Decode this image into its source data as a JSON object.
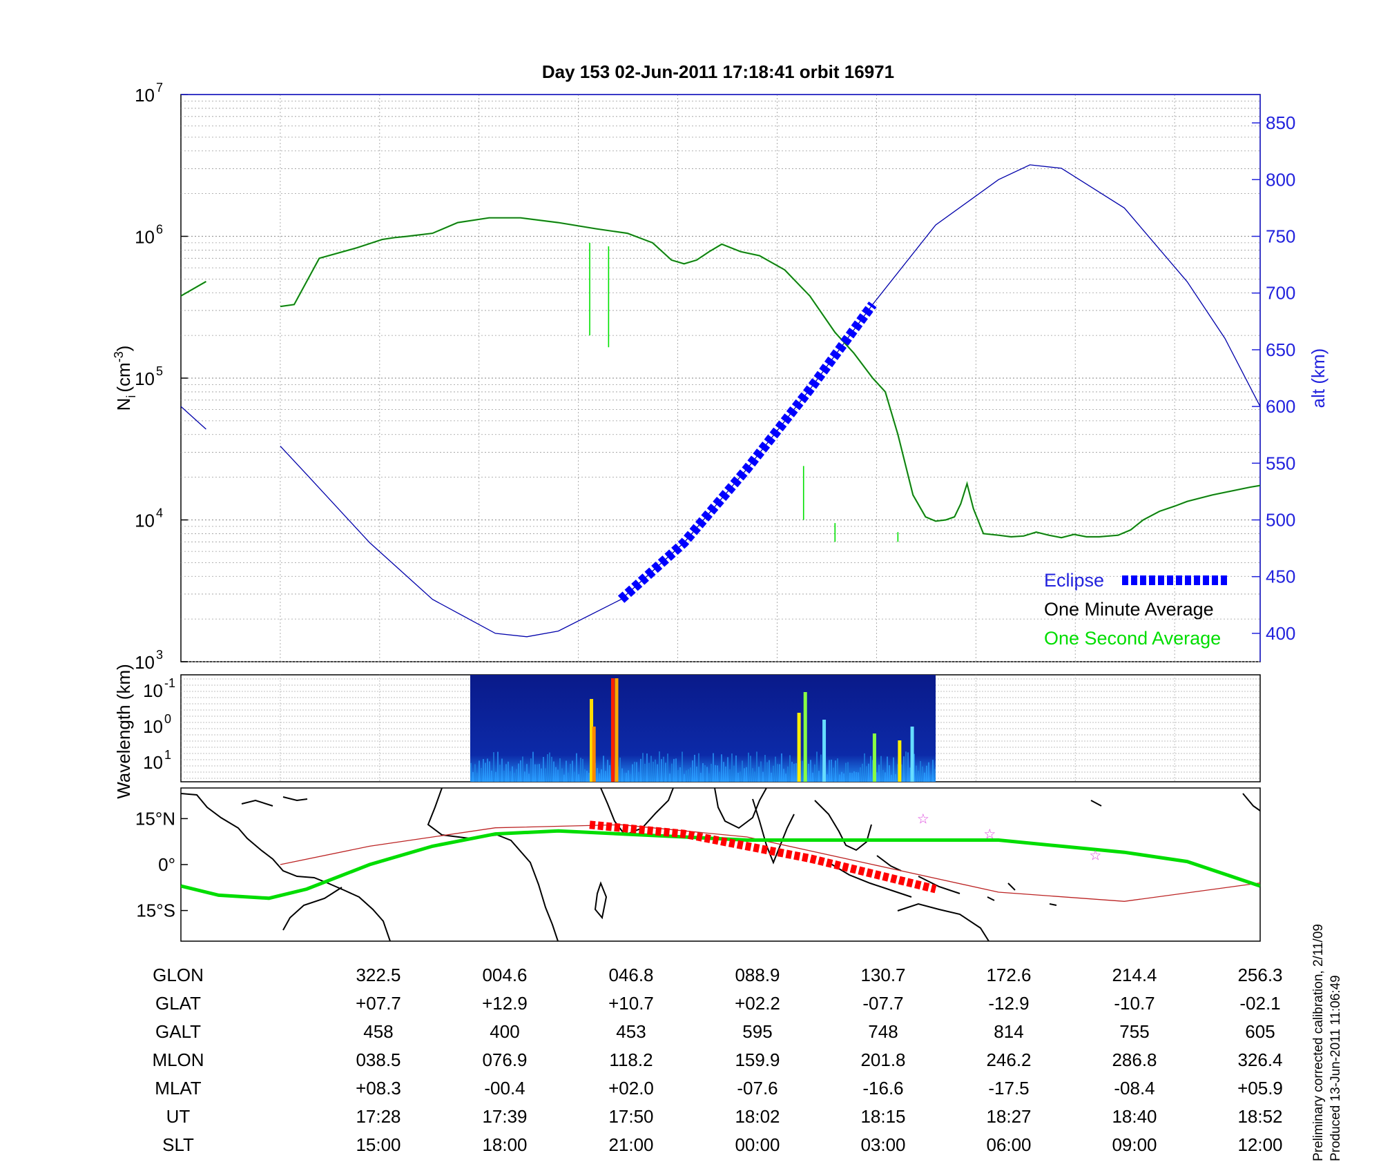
{
  "title": "Day 153  02-Jun-2011 17:18:41   orbit 16971",
  "footer": {
    "line1": "Preliminary corrected calibration, 2/11/09",
    "line2": "Produced 13-Jun-2011 11:06:49"
  },
  "colors": {
    "eclipse": "#0000ff",
    "one_minute": "#1f5f1f",
    "one_second": "#00e000",
    "altitude": "#0000aa",
    "orbit_track": "#00dd00",
    "eclipse_track": "#ff0000",
    "sun_track": "#bb2222",
    "star": "#dd44dd"
  },
  "chart_data": [
    {
      "type": "line",
      "name": "density",
      "ylabel": "N",
      "ylabel_sub": "i",
      "ylabel_unit": "(cm",
      "ylabel_sup": "-3",
      "ylabel_close": ")",
      "yscale": "log",
      "ylim": [
        1000,
        10000000
      ],
      "yticks": [
        {
          "base": "10",
          "exp": "3"
        },
        {
          "base": "10",
          "exp": "4"
        },
        {
          "base": "10",
          "exp": "5"
        },
        {
          "base": "10",
          "exp": "6"
        },
        {
          "base": "10",
          "exp": "7"
        }
      ],
      "y2label": "alt (km)",
      "y2lim": [
        375,
        875
      ],
      "y2ticks": [
        "400",
        "450",
        "500",
        "550",
        "600",
        "650",
        "700",
        "750",
        "800",
        "850"
      ],
      "xlim": [
        0,
        8.58
      ],
      "grid": true,
      "legend_position": "bottom-right",
      "legend": {
        "eclipse": "Eclipse",
        "one_minute": "One Minute Average",
        "one_second": "One Second Average"
      },
      "series": [
        {
          "key": "one_minute",
          "segments": [
            [
              [
                0,
                380000
              ],
              [
                0.2,
                480000
              ]
            ],
            [
              [
                0.79,
                320000
              ],
              [
                0.9,
                330000
              ],
              [
                1.1,
                700000
              ],
              [
                1.4,
                830000
              ],
              [
                1.6,
                950000
              ],
              [
                1.7,
                980000
              ],
              [
                1.8,
                1000000
              ],
              [
                2.0,
                1050000
              ],
              [
                2.2,
                1250000
              ],
              [
                2.45,
                1350000
              ],
              [
                2.7,
                1350000
              ],
              [
                3.0,
                1250000
              ],
              [
                3.3,
                1130000
              ],
              [
                3.55,
                1050000
              ],
              [
                3.75,
                900000
              ],
              [
                3.9,
                680000
              ],
              [
                4.0,
                640000
              ],
              [
                4.1,
                680000
              ],
              [
                4.2,
                780000
              ],
              [
                4.3,
                880000
              ],
              [
                4.45,
                780000
              ],
              [
                4.6,
                730000
              ],
              [
                4.8,
                580000
              ],
              [
                5.0,
                380000
              ],
              [
                5.2,
                210000
              ],
              [
                5.35,
                150000
              ],
              [
                5.5,
                100000
              ],
              [
                5.6,
                80000
              ],
              [
                5.7,
                40000
              ],
              [
                5.82,
                15000
              ],
              [
                5.92,
                10500
              ],
              [
                6.0,
                9800
              ],
              [
                6.08,
                10000
              ],
              [
                6.15,
                10500
              ],
              [
                6.2,
                13000
              ],
              [
                6.25,
                18000
              ],
              [
                6.3,
                12000
              ],
              [
                6.38,
                8000
              ],
              [
                6.5,
                7800
              ],
              [
                6.6,
                7600
              ],
              [
                6.7,
                7700
              ],
              [
                6.8,
                8200
              ],
              [
                6.9,
                7800
              ],
              [
                7.0,
                7500
              ],
              [
                7.1,
                7900
              ],
              [
                7.2,
                7600
              ],
              [
                7.3,
                7600
              ],
              [
                7.45,
                7800
              ],
              [
                7.55,
                8500
              ],
              [
                7.65,
                10000
              ],
              [
                7.78,
                11500
              ],
              [
                7.9,
                12500
              ],
              [
                8.0,
                13500
              ],
              [
                8.2,
                15000
              ],
              [
                8.5,
                17000
              ],
              [
                8.58,
                17500
              ]
            ]
          ]
        },
        {
          "key": "one_second",
          "spikes": [
            {
              "x": 3.25,
              "top": 900000,
              "bottom": 200000
            },
            {
              "x": 3.4,
              "top": 850000,
              "bottom": 165000
            },
            {
              "x": 4.95,
              "top": 24000,
              "bottom": 10000
            },
            {
              "x": 5.2,
              "top": 9500,
              "bottom": 7000
            },
            {
              "x": 5.7,
              "top": 8200,
              "bottom": 7000
            }
          ]
        },
        {
          "key": "eclipse",
          "from_x": 3.25,
          "to_x": 5.98
        },
        {
          "key": "altitude",
          "points": [
            [
              0,
              600
            ],
            [
              0.2,
              580
            ],
            [
              0.79,
              565
            ],
            [
              1.0,
              540
            ],
            [
              1.5,
              480
            ],
            [
              2.0,
              430
            ],
            [
              2.5,
              400
            ],
            [
              2.75,
              397
            ],
            [
              3.0,
              402
            ],
            [
              3.5,
              430
            ],
            [
              4.0,
              480
            ],
            [
              4.5,
              545
            ],
            [
              5.0,
              615
            ],
            [
              5.5,
              690
            ],
            [
              6.0,
              760
            ],
            [
              6.5,
              800
            ],
            [
              6.75,
              813
            ],
            [
              7.0,
              810
            ],
            [
              7.5,
              775
            ],
            [
              8.0,
              710
            ],
            [
              8.3,
              660
            ],
            [
              8.58,
              600
            ]
          ]
        }
      ]
    },
    {
      "type": "heatmap",
      "name": "spectrogram",
      "ylabel": "Wavelength (km)",
      "yticks": [
        {
          "base": "10",
          "exp": "-1"
        },
        {
          "base": "10",
          "exp": "0"
        },
        {
          "base": "10",
          "exp": "1"
        }
      ],
      "data_range_x": [
        2.3,
        6.0
      ]
    },
    {
      "type": "map",
      "name": "ground-track",
      "yticks": [
        "15°N",
        "0°",
        "15°S"
      ],
      "ylim": [
        -25,
        25
      ],
      "orbit_track": [
        [
          0,
          -7
        ],
        [
          0.3,
          -10
        ],
        [
          0.7,
          -11
        ],
        [
          1.0,
          -8
        ],
        [
          1.5,
          0
        ],
        [
          2.0,
          6
        ],
        [
          2.5,
          10
        ],
        [
          3.0,
          11
        ],
        [
          3.5,
          10
        ],
        [
          4.0,
          9
        ],
        [
          4.5,
          8
        ],
        [
          5.0,
          8
        ],
        [
          5.5,
          8
        ],
        [
          6.0,
          8
        ],
        [
          6.5,
          8
        ],
        [
          7.0,
          6
        ],
        [
          7.5,
          4
        ],
        [
          8.0,
          1
        ],
        [
          8.58,
          -7
        ]
      ],
      "sun_track": [
        [
          0.79,
          0
        ],
        [
          1.5,
          6
        ],
        [
          2.5,
          12
        ],
        [
          3.5,
          13
        ],
        [
          4.5,
          9
        ],
        [
          5.5,
          0
        ],
        [
          6.5,
          -9
        ],
        [
          7.5,
          -12
        ],
        [
          8.58,
          -6
        ]
      ],
      "eclipse_track": [
        [
          3.25,
          13
        ],
        [
          4.0,
          10
        ],
        [
          5.0,
          2
        ],
        [
          6.0,
          -8
        ]
      ],
      "stars": [
        [
          5.9,
          15
        ],
        [
          6.43,
          10
        ],
        [
          7.27,
          3
        ]
      ]
    },
    {
      "type": "table",
      "name": "orbit-parameters",
      "rows": [
        {
          "label": "GLON",
          "values": [
            "322.5",
            "004.6",
            "046.8",
            "088.9",
            "130.7",
            "172.6",
            "214.4",
            "256.3"
          ]
        },
        {
          "label": "GLAT",
          "values": [
            "+07.7",
            "+12.9",
            "+10.7",
            "+02.2",
            "-07.7",
            "-12.9",
            "-10.7",
            "-02.1"
          ]
        },
        {
          "label": "GALT",
          "values": [
            "458",
            "400",
            "453",
            "595",
            "748",
            "814",
            "755",
            "605"
          ]
        },
        {
          "label": "MLON",
          "values": [
            "038.5",
            "076.9",
            "118.2",
            "159.9",
            "201.8",
            "246.2",
            "286.8",
            "326.4"
          ]
        },
        {
          "label": "MLAT",
          "values": [
            "+08.3",
            "-00.4",
            "+02.0",
            "-07.6",
            "-16.6",
            "-17.5",
            "-08.4",
            "+05.9"
          ]
        },
        {
          "label": "UT",
          "values": [
            "17:28",
            "17:39",
            "17:50",
            "18:02",
            "18:15",
            "18:27",
            "18:40",
            "18:52"
          ]
        },
        {
          "label": "SLT",
          "values": [
            "15:00",
            "18:00",
            "21:00",
            "00:00",
            "03:00",
            "06:00",
            "09:00",
            "12:00"
          ]
        }
      ]
    }
  ]
}
